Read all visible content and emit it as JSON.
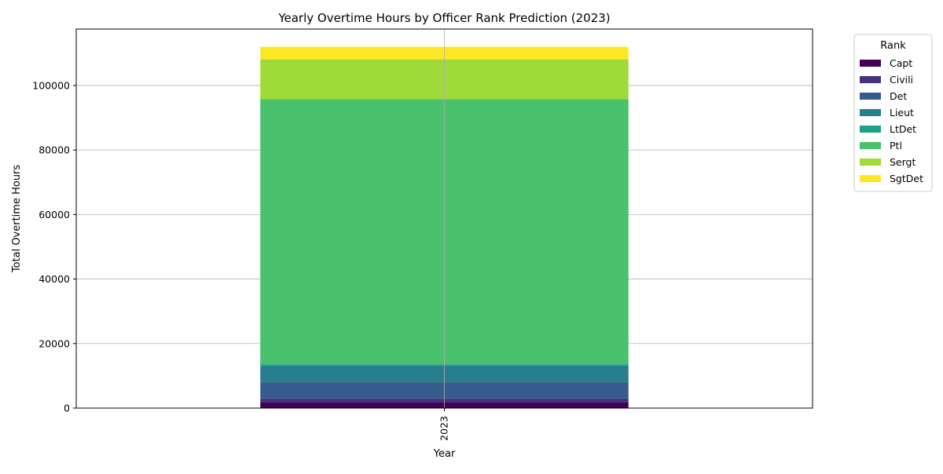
{
  "chart_data": {
    "type": "bar",
    "stacked": true,
    "title": "Yearly Overtime Hours by Officer Rank Prediction (2023)",
    "xlabel": "Year",
    "ylabel": "Total Overtime Hours",
    "categories": [
      "2023"
    ],
    "ylim": [
      0,
      117500
    ],
    "yticks": [
      0,
      20000,
      40000,
      60000,
      80000,
      100000
    ],
    "grid": true,
    "legend": {
      "title": "Rank",
      "placement": "outside-right-top"
    },
    "series": [
      {
        "name": "Capt",
        "values": [
          1700
        ],
        "color": "#440154"
      },
      {
        "name": "Civili",
        "values": [
          1300
        ],
        "color": "#46327e"
      },
      {
        "name": "Det",
        "values": [
          5000
        ],
        "color": "#365c8d"
      },
      {
        "name": "Lieut",
        "values": [
          5200
        ],
        "color": "#277f8e"
      },
      {
        "name": "LtDet",
        "values": [
          400
        ],
        "color": "#1fa187"
      },
      {
        "name": "Ptl",
        "values": [
          82200
        ],
        "color": "#4ac16d"
      },
      {
        "name": "Sergt",
        "values": [
          12300
        ],
        "color": "#a0da39"
      },
      {
        "name": "SgtDet",
        "values": [
          3900
        ],
        "color": "#fde725"
      }
    ]
  }
}
